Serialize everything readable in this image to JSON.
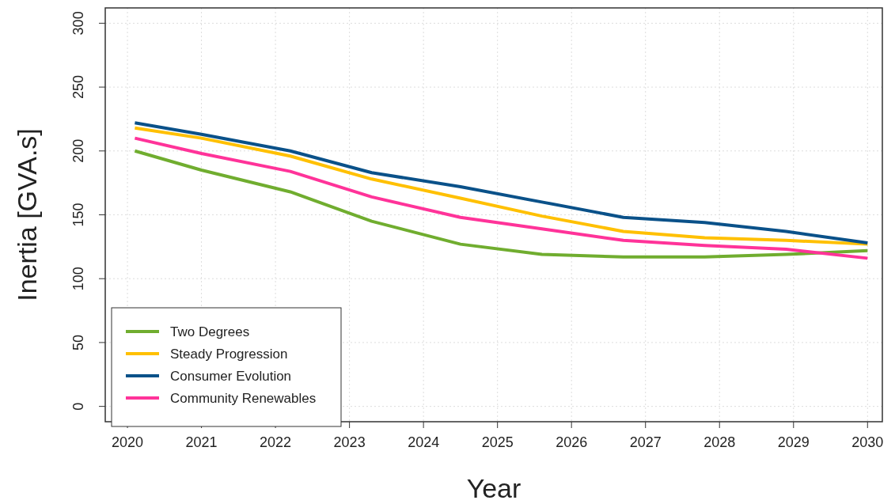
{
  "chart_data": {
    "type": "line",
    "xlabel": "Year",
    "ylabel": "Inertia [GVA.s]",
    "x": [
      2020.1,
      2021,
      2022.2,
      2023.3,
      2024.5,
      2025.6,
      2026.7,
      2027.8,
      2028.9,
      2030
    ],
    "series": [
      {
        "name": "Two Degrees",
        "color": "#70ad2f",
        "values": [
          200,
          185,
          168,
          145,
          127,
          119,
          117,
          117,
          119,
          122
        ]
      },
      {
        "name": "Steady Progression",
        "color": "#ffc000",
        "values": [
          218,
          210,
          196,
          178,
          163,
          149,
          137,
          132,
          130,
          127
        ]
      },
      {
        "name": "Consumer Evolution",
        "color": "#0a5189",
        "values": [
          222,
          213,
          200,
          183,
          172,
          160,
          148,
          144,
          137,
          128
        ]
      },
      {
        "name": "Community Renewables",
        "color": "#ff3399",
        "values": [
          210,
          198,
          184,
          164,
          148,
          139,
          130,
          126,
          123,
          116
        ]
      }
    ],
    "xlim": [
      2019.7,
      2030.2
    ],
    "xticks": [
      2020,
      2021,
      2022,
      2023,
      2024,
      2025,
      2026,
      2027,
      2028,
      2029,
      2030
    ],
    "ylim": [
      -12,
      312
    ],
    "yticks": [
      0,
      50,
      100,
      150,
      200,
      250,
      300
    ],
    "grid": true,
    "legend": "bottom left",
    "marker": "none",
    "line_style": "solid"
  }
}
